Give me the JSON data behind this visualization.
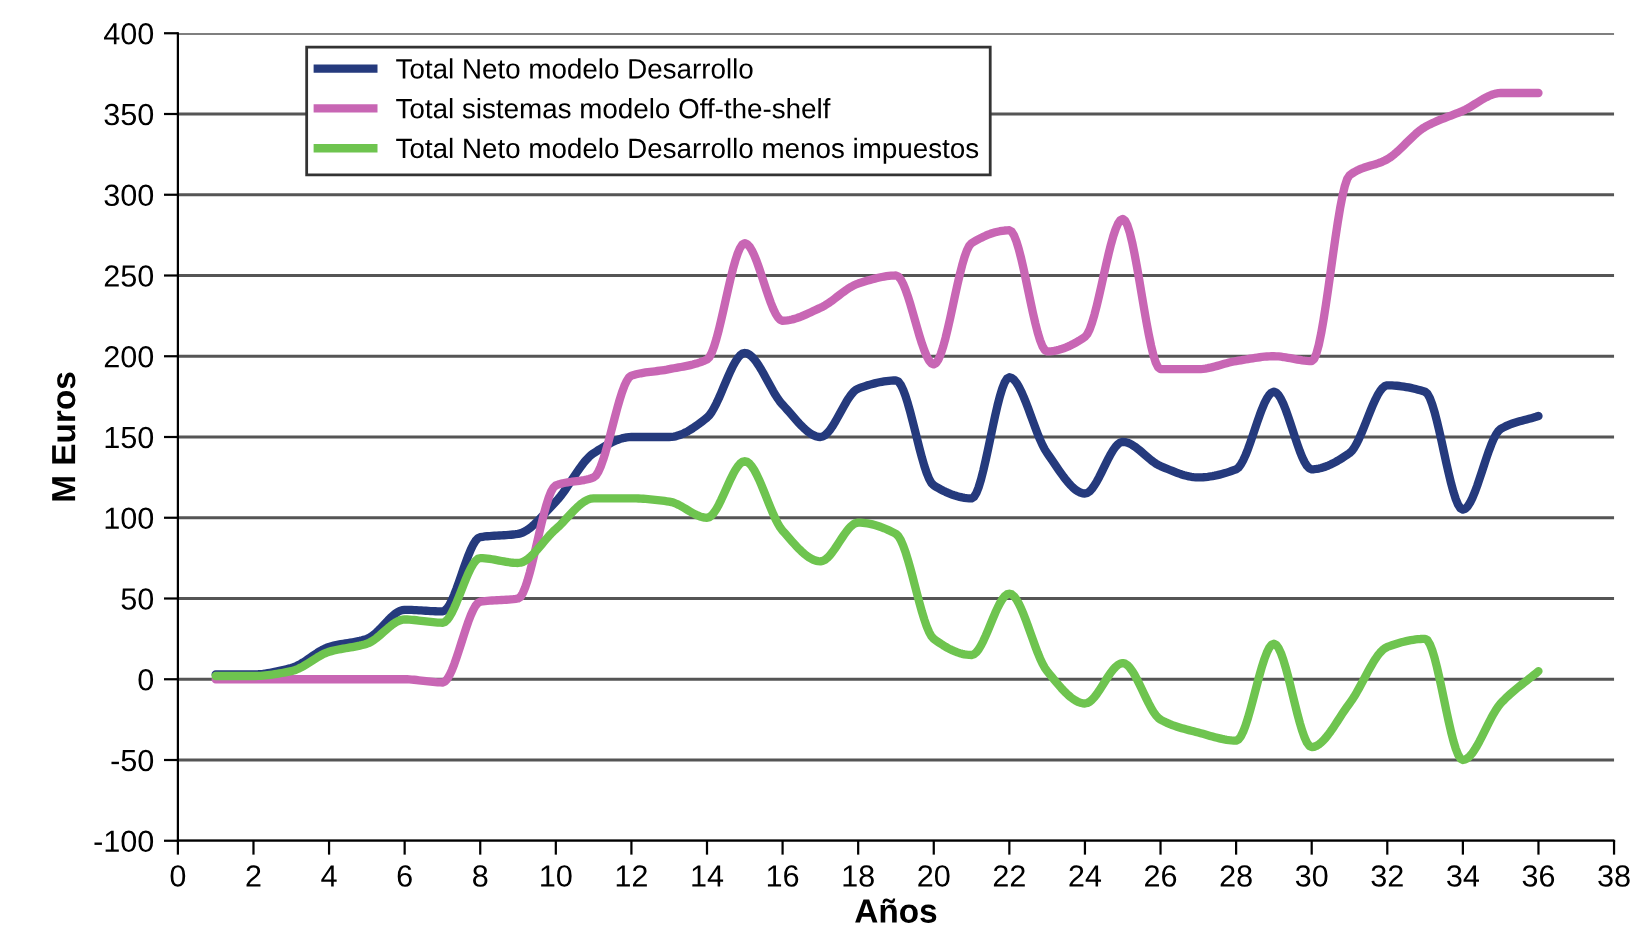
{
  "chart_data": {
    "type": "line",
    "xlabel": "Años",
    "ylabel": "M Euros",
    "x": [
      1,
      2,
      3,
      4,
      5,
      6,
      7,
      8,
      9,
      10,
      11,
      12,
      13,
      14,
      15,
      16,
      17,
      18,
      19,
      20,
      21,
      22,
      23,
      24,
      25,
      26,
      27,
      28,
      29,
      30,
      31,
      32,
      33,
      34,
      35,
      36
    ],
    "series": [
      {
        "name": "Total Neto modelo Desarrollo",
        "color": "#253a7d",
        "values": [
          3,
          3,
          7,
          20,
          25,
          43,
          42,
          88,
          90,
          110,
          140,
          150,
          150,
          162,
          202,
          170,
          150,
          180,
          185,
          120,
          112,
          187,
          140,
          115,
          147,
          132,
          125,
          130,
          178,
          130,
          140,
          182,
          178,
          105,
          155,
          163
        ]
      },
      {
        "name": "Total sistemas modelo Off-the-shelf",
        "color": "#c866b4",
        "values": [
          0,
          0,
          0,
          0,
          0,
          0,
          -2,
          48,
          50,
          120,
          125,
          188,
          192,
          198,
          270,
          222,
          230,
          245,
          250,
          195,
          270,
          278,
          203,
          212,
          285,
          192,
          192,
          197,
          200,
          197,
          312,
          322,
          342,
          352,
          363,
          363
        ]
      },
      {
        "name": "Total Neto modelo Desarrollo menos impuestos",
        "color": "#6ec44f",
        "values": [
          2,
          2,
          5,
          17,
          22,
          37,
          35,
          75,
          72,
          93,
          112,
          112,
          110,
          100,
          135,
          92,
          73,
          97,
          90,
          25,
          15,
          53,
          5,
          -15,
          10,
          -25,
          -33,
          -38,
          22,
          -42,
          -15,
          20,
          25,
          -50,
          -15,
          5
        ]
      }
    ],
    "xlim": [
      0,
      38
    ],
    "xticks": [
      0,
      2,
      4,
      6,
      8,
      10,
      12,
      14,
      16,
      18,
      20,
      22,
      24,
      26,
      28,
      30,
      32,
      34,
      36,
      38
    ],
    "ylim": [
      -100,
      400
    ],
    "yticks": [
      -100,
      -50,
      0,
      50,
      100,
      150,
      200,
      250,
      300,
      350,
      400
    ],
    "grid": "y",
    "legend": "top left",
    "marker": "none",
    "line_style": "solid"
  }
}
